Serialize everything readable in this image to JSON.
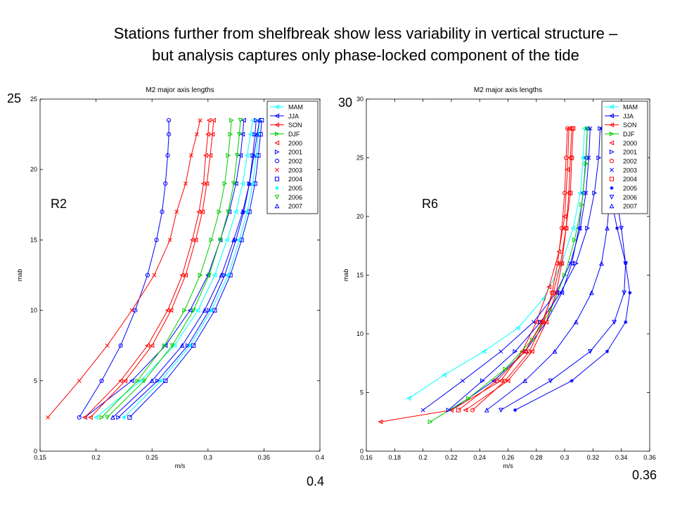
{
  "slide": {
    "title_line1": "Stations further from shelfbreak show less variability in vertical structure –",
    "title_line2": "but analysis captures only phase-locked component of the tide"
  },
  "overlay": {
    "left_top": "25",
    "left_station": "R2",
    "left_bottom": "0.4",
    "right_top": "30",
    "right_station": "R6",
    "right_bottom": "0.36"
  },
  "chart_data": [
    {
      "type": "line",
      "title": "M2 major axis lengths",
      "xlabel": "m/s",
      "ylabel": "mab",
      "xlim": [
        0.15,
        0.4
      ],
      "ylim": [
        0,
        25
      ],
      "xticks": [
        "0.15",
        "0.2",
        "0.25",
        "0.3",
        "0.35",
        "0.4"
      ],
      "yticks": [
        "0",
        "5",
        "10",
        "15",
        "20",
        "25"
      ],
      "grid": false,
      "legend_position": "top-right",
      "legend": [
        "MAM",
        "JJA",
        "SON",
        "DJF",
        "2000",
        "2001",
        "2002",
        "2003",
        "2004",
        "2005",
        "2006",
        "2007"
      ],
      "series": [
        {
          "name": "MAM",
          "color": "#00ffff",
          "marker": "triangle-left",
          "x": [
            0.2,
            0.24,
            0.27,
            0.291,
            0.306,
            0.317,
            0.325,
            0.331,
            0.335,
            0.338,
            0.34
          ],
          "y": [
            2.4,
            5,
            7.5,
            10,
            12.5,
            15,
            17,
            19,
            21,
            22.5,
            23.5
          ]
        },
        {
          "name": "JJA",
          "color": "#0000ff",
          "marker": "triangle-left",
          "x": [
            0.19,
            0.232,
            0.262,
            0.284,
            0.3,
            0.311,
            0.319,
            0.325,
            0.329,
            0.331,
            0.332
          ],
          "y": [
            2.4,
            5,
            7.5,
            10,
            12.5,
            15,
            17,
            19,
            21,
            22.5,
            23.5
          ]
        },
        {
          "name": "SON",
          "color": "#ff0000",
          "marker": "triangle-left",
          "x": [
            0.195,
            0.226,
            0.25,
            0.267,
            0.28,
            0.289,
            0.295,
            0.299,
            0.302,
            0.304,
            0.305
          ],
          "y": [
            2.4,
            5,
            7.5,
            10,
            12.5,
            15,
            17,
            19,
            21,
            22.5,
            23.5
          ]
        },
        {
          "name": "DJF",
          "color": "#00cc00",
          "marker": "triangle-right",
          "x": [
            0.205,
            0.237,
            0.261,
            0.279,
            0.293,
            0.303,
            0.31,
            0.315,
            0.318,
            0.32,
            0.321
          ],
          "y": [
            2.4,
            5,
            7.5,
            10,
            12.5,
            15,
            17,
            19,
            21,
            22.5,
            23.5
          ]
        },
        {
          "name": "2000",
          "color": "#ff0000",
          "marker": "triangle-left",
          "x": [
            0.19,
            0.222,
            0.246,
            0.264,
            0.277,
            0.286,
            0.292,
            0.296,
            0.298,
            0.3,
            0.301
          ],
          "y": [
            2.4,
            5,
            7.5,
            10,
            12.5,
            15,
            17,
            19,
            21,
            22.5,
            23.5
          ]
        },
        {
          "name": "2001",
          "color": "#0000ff",
          "marker": "triangle-right",
          "x": [
            0.22,
            0.255,
            0.282,
            0.301,
            0.315,
            0.325,
            0.332,
            0.337,
            0.34,
            0.342,
            0.343
          ],
          "y": [
            2.4,
            5,
            7.5,
            10,
            12.5,
            15,
            17,
            19,
            21,
            22.5,
            23.5
          ]
        },
        {
          "name": "2002",
          "color": "#0000ff",
          "marker": "circle",
          "x": [
            0.185,
            0.205,
            0.222,
            0.235,
            0.246,
            0.254,
            0.259,
            0.262,
            0.264,
            0.265,
            0.265
          ],
          "y": [
            2.4,
            5,
            7.5,
            10,
            12.5,
            15,
            17,
            19,
            21,
            22.5,
            23.5
          ]
        },
        {
          "name": "2003",
          "color": "#ff0000",
          "marker": "x",
          "x": [
            0.157,
            0.185,
            0.21,
            0.232,
            0.252,
            0.266,
            0.272,
            0.28,
            0.285,
            0.29,
            0.293
          ],
          "y": [
            2.4,
            5,
            7.5,
            10,
            12.5,
            15,
            17,
            19,
            21,
            22.5,
            23.5
          ]
        },
        {
          "name": "2004",
          "color": "#0000ff",
          "marker": "square",
          "x": [
            0.23,
            0.262,
            0.287,
            0.306,
            0.32,
            0.33,
            0.337,
            0.342,
            0.345,
            0.347,
            0.348
          ],
          "y": [
            2.4,
            5,
            7.5,
            10,
            12.5,
            15,
            17,
            19,
            21,
            22.5,
            23.5
          ]
        },
        {
          "name": "2005",
          "color": "#00ffff",
          "marker": "asterisk",
          "x": [
            0.225,
            0.258,
            0.284,
            0.303,
            0.318,
            0.328,
            0.335,
            0.34,
            0.343,
            0.345,
            0.346
          ],
          "y": [
            2.4,
            5,
            7.5,
            10,
            12.5,
            15,
            17,
            19,
            21,
            22.5,
            23.5
          ]
        },
        {
          "name": "2006",
          "color": "#00cc00",
          "marker": "triangle-down",
          "x": [
            0.21,
            0.243,
            0.268,
            0.287,
            0.301,
            0.311,
            0.318,
            0.323,
            0.326,
            0.328,
            0.329
          ],
          "y": [
            2.4,
            5,
            7.5,
            10,
            12.5,
            15,
            17,
            19,
            21,
            22.5,
            23.5
          ]
        },
        {
          "name": "2007",
          "color": "#0000ff",
          "marker": "triangle-up",
          "x": [
            0.215,
            0.25,
            0.277,
            0.297,
            0.312,
            0.323,
            0.331,
            0.337,
            0.341,
            0.344,
            0.346
          ],
          "y": [
            2.4,
            5,
            7.5,
            10,
            12.5,
            15,
            17,
            19,
            21,
            22.5,
            23.5
          ]
        }
      ]
    },
    {
      "type": "line",
      "title": "M2 major axis lengths",
      "xlabel": "m/s",
      "ylabel": "mab",
      "xlim": [
        0.16,
        0.36
      ],
      "ylim": [
        0,
        30
      ],
      "xticks": [
        "0.16",
        "0.18",
        "0.2",
        "0.22",
        "0.24",
        "0.26",
        "0.28",
        "0.3",
        "0.32",
        "0.34",
        "0.36"
      ],
      "yticks": [
        "0",
        "5",
        "10",
        "15",
        "20",
        "25",
        "30"
      ],
      "grid": false,
      "legend_position": "top-right",
      "legend": [
        "MAM",
        "JJA",
        "SON",
        "DJF",
        "2000",
        "2001",
        "2002",
        "2003",
        "2004",
        "2005",
        "2006",
        "2007"
      ],
      "series": [
        {
          "name": "MAM",
          "color": "#00ffff",
          "marker": "triangle-left",
          "x": [
            0.19,
            0.215,
            0.243,
            0.267,
            0.285,
            0.298,
            0.306,
            0.311,
            0.313,
            0.314
          ],
          "y": [
            4.5,
            6.5,
            8.5,
            10.5,
            13,
            16,
            19,
            22,
            25,
            27.5
          ]
        },
        {
          "name": "JJA",
          "color": "#0000ff",
          "marker": "triangle-left",
          "x": [
            0.22,
            0.25,
            0.272,
            0.287,
            0.298,
            0.305,
            0.31,
            0.313,
            0.315,
            0.316
          ],
          "y": [
            3.5,
            6,
            8.5,
            11,
            13.5,
            16,
            19,
            22,
            25,
            27.5
          ]
        },
        {
          "name": "SON",
          "color": "#ff0000",
          "marker": "triangle-left",
          "x": [
            0.17,
            0.22,
            0.255,
            0.27,
            0.28,
            0.289,
            0.296,
            0.3,
            0.302,
            0.303
          ],
          "y": [
            2.5,
            3.5,
            6,
            8.5,
            11,
            14,
            17,
            20,
            24,
            27.5
          ]
        },
        {
          "name": "DJF",
          "color": "#00cc00",
          "marker": "triangle-right",
          "x": [
            0.205,
            0.232,
            0.258,
            0.277,
            0.29,
            0.3,
            0.307,
            0.312,
            0.315,
            0.316
          ],
          "y": [
            2.5,
            4.5,
            7,
            9.5,
            12,
            15,
            18,
            21,
            24.5,
            27.5
          ]
        },
        {
          "name": "2000",
          "color": "#ff0000",
          "marker": "triangle-left",
          "x": [
            0.23,
            0.26,
            0.277,
            0.287,
            0.294,
            0.298,
            0.301,
            0.303,
            0.304,
            0.305
          ],
          "y": [
            3.5,
            6,
            8.5,
            11,
            13.5,
            16,
            19,
            22,
            25,
            27.5
          ]
        },
        {
          "name": "2001",
          "color": "#0000ff",
          "marker": "triangle-right",
          "x": [
            0.218,
            0.242,
            0.265,
            0.283,
            0.297,
            0.308,
            0.316,
            0.321,
            0.324,
            0.325
          ],
          "y": [
            3.5,
            6,
            8.5,
            11,
            13.5,
            16,
            19,
            22,
            25,
            27.5
          ]
        },
        {
          "name": "2002",
          "color": "#ff0000",
          "marker": "circle",
          "x": [
            0.235,
            0.258,
            0.275,
            0.285,
            0.291,
            0.295,
            0.298,
            0.3,
            0.301,
            0.302
          ],
          "y": [
            3.5,
            6,
            8.5,
            11,
            13.5,
            16,
            19,
            22,
            25,
            27.5
          ]
        },
        {
          "name": "2003",
          "color": "#0000ff",
          "marker": "x",
          "x": [
            0.2,
            0.228,
            0.255,
            0.278,
            0.294,
            0.304,
            0.311,
            0.315,
            0.317,
            0.318
          ],
          "y": [
            3.5,
            6,
            8.5,
            11,
            13.5,
            16,
            19,
            22,
            25,
            27.5
          ]
        },
        {
          "name": "2004",
          "color": "#ff0000",
          "marker": "square",
          "x": [
            0.225,
            0.252,
            0.272,
            0.284,
            0.292,
            0.297,
            0.301,
            0.304,
            0.305,
            0.306
          ],
          "y": [
            3.5,
            6,
            8.5,
            11,
            13.5,
            16,
            19,
            22,
            25,
            27.5
          ]
        },
        {
          "name": "2005",
          "color": "#0000ff",
          "marker": "asterisk",
          "x": [
            0.265,
            0.305,
            0.33,
            0.343,
            0.346,
            0.343,
            0.337,
            0.332,
            0.328,
            0.326
          ],
          "y": [
            3.5,
            6,
            8.5,
            11,
            13.5,
            16,
            19,
            22,
            25,
            27.5
          ]
        },
        {
          "name": "2006",
          "color": "#0000ff",
          "marker": "triangle-down",
          "x": [
            0.255,
            0.29,
            0.318,
            0.335,
            0.342,
            0.343,
            0.34,
            0.336,
            0.333,
            0.331
          ],
          "y": [
            3.5,
            6,
            8.5,
            11,
            13.5,
            16,
            19,
            22,
            25,
            27.5
          ]
        },
        {
          "name": "2007",
          "color": "#0000ff",
          "marker": "triangle-up",
          "x": [
            0.245,
            0.272,
            0.293,
            0.308,
            0.319,
            0.326,
            0.33,
            0.332,
            0.333,
            0.333
          ],
          "y": [
            3.5,
            6,
            8.5,
            11,
            13.5,
            16,
            19,
            22,
            25,
            27.5
          ]
        }
      ]
    }
  ]
}
